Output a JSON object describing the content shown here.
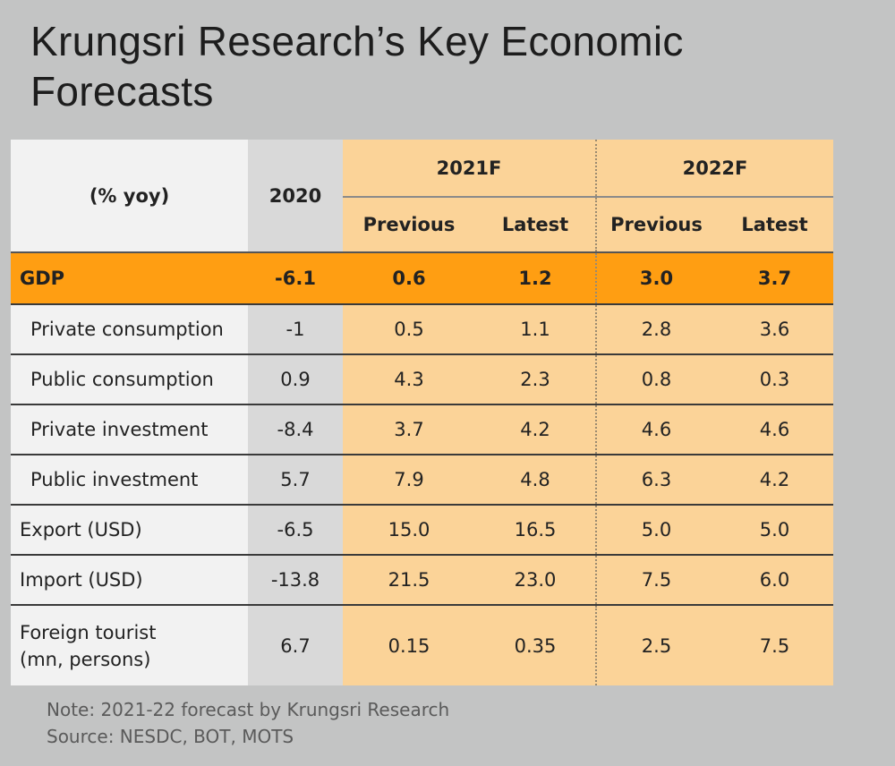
{
  "title": "Krungsri Research’s Key Economic Forecasts",
  "table": {
    "unit_header": "(% yoy)",
    "col_2020": "2020",
    "group_2021": "2021F",
    "group_2022": "2022F",
    "sub_previous": "Previous",
    "sub_latest": "Latest",
    "rows": [
      {
        "label": "GDP",
        "v2020": "-6.1",
        "p2021": "0.6",
        "l2021": "1.2",
        "p2022": "3.0",
        "l2022": "3.7"
      },
      {
        "label": "Private consumption",
        "v2020": "-1",
        "p2021": "0.5",
        "l2021": "1.1",
        "p2022": "2.8",
        "l2022": "3.6"
      },
      {
        "label": "Public consumption",
        "v2020": "0.9",
        "p2021": "4.3",
        "l2021": "2.3",
        "p2022": "0.8",
        "l2022": "0.3"
      },
      {
        "label": "Private investment",
        "v2020": "-8.4",
        "p2021": "3.7",
        "l2021": "4.2",
        "p2022": "4.6",
        "l2022": "4.6"
      },
      {
        "label": "Public investment",
        "v2020": "5.7",
        "p2021": "7.9",
        "l2021": "4.8",
        "p2022": "6.3",
        "l2022": "4.2"
      },
      {
        "label": "Export (USD)",
        "v2020": "-6.5",
        "p2021": "15.0",
        "l2021": "16.5",
        "p2022": "5.0",
        "l2022": "5.0"
      },
      {
        "label": "Import (USD)",
        "v2020": "-13.8",
        "p2021": "21.5",
        "l2021": "23.0",
        "p2022": "7.5",
        "l2022": "6.0"
      },
      {
        "label_line1": "Foreign tourist",
        "label_line2": "(mn, persons)",
        "v2020": "6.7",
        "p2021": "0.15",
        "l2021": "0.35",
        "p2022": "2.5",
        "l2022": "7.5"
      }
    ]
  },
  "note": "Note: 2021-22 forecast by Krungsri Research",
  "source": "Source: NESDC, BOT, MOTS"
}
